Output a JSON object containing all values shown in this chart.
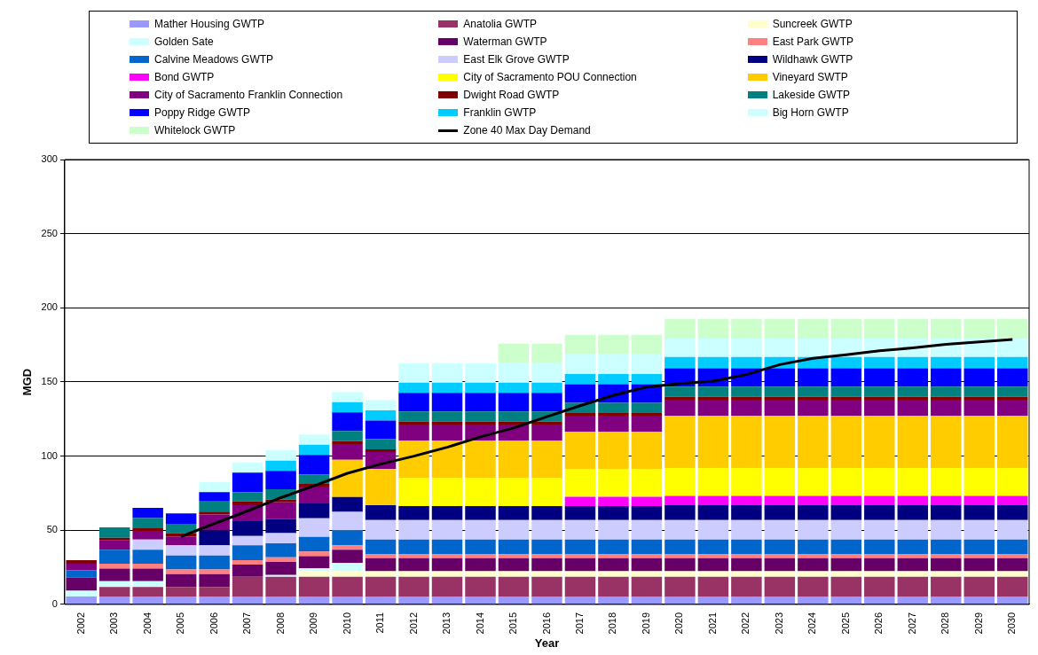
{
  "chart_data": {
    "type": "bar",
    "stacked": true,
    "xlabel": "Year",
    "ylabel": "MGD",
    "ylim": [
      0,
      300
    ],
    "yticks": [
      0,
      50,
      100,
      150,
      200,
      250,
      300
    ],
    "grid": "y",
    "legend": "top",
    "categories": [
      "2002",
      "2003",
      "2004",
      "2005",
      "2006",
      "2007",
      "2008",
      "2009",
      "2010",
      "2011",
      "2012",
      "2013",
      "2014",
      "2015",
      "2016",
      "2017",
      "2018",
      "2019",
      "2020",
      "2021",
      "2022",
      "2023",
      "2024",
      "2025",
      "2026",
      "2027",
      "2028",
      "2029",
      "2030"
    ],
    "series": [
      {
        "name": "Mather Housing GWTP",
        "color": "#9999ff",
        "values": [
          5.4,
          5.4,
          5.4,
          5.4,
          5.4,
          5.4,
          5.4,
          5.4,
          5.4,
          5.4,
          5.4,
          5.4,
          5.4,
          5.4,
          5.4,
          5.4,
          5.4,
          5.4,
          5.4,
          5.4,
          5.4,
          5.4,
          5.4,
          5.4,
          5.4,
          5.4,
          5.4,
          5.4,
          5.4
        ]
      },
      {
        "name": "Anatolia GWTP",
        "color": "#993366",
        "values": [
          null,
          6.3,
          6.3,
          6.3,
          6.3,
          13.2,
          13.2,
          13.2,
          13.2,
          13.2,
          13.2,
          13.2,
          13.2,
          13.2,
          13.2,
          13.2,
          13.2,
          13.2,
          13.2,
          13.2,
          13.2,
          13.2,
          13.2,
          13.2,
          13.2,
          13.2,
          13.2,
          13.2,
          13.2
        ]
      },
      {
        "name": "Suncreek GWTP",
        "color": "#ffffcc",
        "values": [
          null,
          null,
          null,
          null,
          null,
          null,
          null,
          3.8,
          3.8,
          3.8,
          3.8,
          3.8,
          3.8,
          3.8,
          3.8,
          3.8,
          3.8,
          3.8,
          3.8,
          3.8,
          3.8,
          3.8,
          3.8,
          3.8,
          3.8,
          3.8,
          3.8,
          3.8,
          3.8
        ]
      },
      {
        "name": "Golden Sate",
        "color": "#ccffff",
        "values": [
          3.8,
          4.0,
          4.0,
          null,
          null,
          null,
          1.3,
          1.9,
          5.6,
          null,
          null,
          null,
          null,
          null,
          null,
          null,
          null,
          null,
          null,
          null,
          null,
          null,
          null,
          null,
          null,
          null,
          null,
          null,
          null
        ]
      },
      {
        "name": "Waterman GWTP",
        "color": "#660066",
        "values": [
          8.8,
          8.4,
          8.4,
          8.8,
          8.8,
          8.2,
          8.8,
          8.2,
          8.8,
          8.8,
          8.8,
          8.8,
          8.8,
          8.8,
          8.8,
          8.8,
          8.8,
          8.8,
          8.8,
          8.8,
          8.8,
          8.8,
          8.8,
          8.8,
          8.8,
          8.8,
          8.8,
          8.8,
          8.8
        ]
      },
      {
        "name": "East Park GWTP",
        "color": "#ff8080",
        "values": [
          null,
          3.3,
          3.3,
          3.1,
          3.1,
          3.1,
          3.1,
          3.1,
          3.1,
          2.5,
          2.5,
          2.5,
          2.5,
          2.5,
          2.5,
          2.5,
          2.5,
          2.5,
          2.5,
          2.5,
          2.5,
          2.5,
          2.5,
          2.5,
          2.5,
          2.5,
          2.5,
          2.5,
          2.5
        ]
      },
      {
        "name": "Calvine Meadows GWTP",
        "color": "#0066cc",
        "values": [
          5.0,
          9.4,
          9.4,
          9.4,
          9.4,
          10,
          9.4,
          10,
          10,
          10,
          10,
          10,
          10,
          10,
          10,
          10,
          10,
          10,
          10,
          10,
          10,
          10,
          10,
          10,
          10,
          10,
          10,
          10,
          10
        ]
      },
      {
        "name": "East Elk Grove GWTP",
        "color": "#ccccff",
        "values": [
          null,
          null,
          6.9,
          6.9,
          6.9,
          6.3,
          6.9,
          12.5,
          12.5,
          13.2,
          13.2,
          13.2,
          13.2,
          13.2,
          13.2,
          13.2,
          13.2,
          13.2,
          13.2,
          13.2,
          13.2,
          13.2,
          13.2,
          13.2,
          13.2,
          13.2,
          13.2,
          13.2,
          13.2
        ]
      },
      {
        "name": "Wildhawk GWTP",
        "color": "#000080",
        "values": [
          null,
          null,
          null,
          null,
          10,
          10,
          9.4,
          10,
          10,
          10,
          9.4,
          9.4,
          9.4,
          9.4,
          9.4,
          9.4,
          9.4,
          9.4,
          10,
          10,
          10,
          10,
          10,
          10,
          10,
          10,
          10,
          10,
          10
        ]
      },
      {
        "name": "Bond GWTP",
        "color": "#ff00ff",
        "values": [
          null,
          null,
          null,
          null,
          null,
          null,
          null,
          null,
          null,
          null,
          null,
          null,
          null,
          null,
          null,
          6.3,
          6.3,
          6.3,
          6.3,
          6.3,
          6.3,
          6.3,
          6.3,
          6.3,
          6.3,
          6.3,
          6.3,
          6.3,
          6.3
        ]
      },
      {
        "name": "City of Sacramento POU Connection",
        "color": "#ffff00",
        "values": [
          null,
          null,
          null,
          null,
          null,
          null,
          null,
          null,
          null,
          null,
          19.2,
          19.2,
          19.2,
          19.2,
          19.2,
          18.8,
          18.8,
          18.8,
          18.8,
          18.8,
          18.8,
          18.8,
          18.8,
          18.8,
          18.8,
          18.8,
          18.8,
          18.8,
          18.8
        ]
      },
      {
        "name": "Vineyard SWTP",
        "color": "#ffcc00",
        "values": [
          null,
          null,
          null,
          null,
          null,
          null,
          null,
          null,
          25.1,
          24.5,
          25.1,
          25.1,
          25.1,
          25.1,
          25.1,
          25.1,
          25.1,
          25.1,
          35.3,
          35.3,
          35.3,
          35.3,
          35.3,
          35.3,
          35.3,
          35.3,
          35.3,
          35.3,
          35.3
        ]
      },
      {
        "name": "City of Sacramento Franklin Connection",
        "color": "#800080",
        "values": [
          4.4,
          6.3,
          5.9,
          5.9,
          10.7,
          10.7,
          11.3,
          11.3,
          10.7,
          11.3,
          10.7,
          10.7,
          10.7,
          10.7,
          10.7,
          10.7,
          10.7,
          10.7,
          10.7,
          10.7,
          10.7,
          10.7,
          10.7,
          10.7,
          10.7,
          10.7,
          10.7,
          10.7,
          10.7
        ]
      },
      {
        "name": "Dwight Road GWTP",
        "color": "#800000",
        "values": [
          2.5,
          1.9,
          1.7,
          2.3,
          1.9,
          2.5,
          1.9,
          1.9,
          1.9,
          1.9,
          1.9,
          1.9,
          1.9,
          1.9,
          1.9,
          1.9,
          1.9,
          1.9,
          1.9,
          1.9,
          1.9,
          1.9,
          1.9,
          1.9,
          1.9,
          1.9,
          1.9,
          1.9,
          1.9
        ]
      },
      {
        "name": "Lakeside GWTP",
        "color": "#008080",
        "values": [
          null,
          6.9,
          6.9,
          6.3,
          6.9,
          6.3,
          6.9,
          6.3,
          6.9,
          6.9,
          6.9,
          6.9,
          6.9,
          6.9,
          6.9,
          6.9,
          6.9,
          6.9,
          6.9,
          6.9,
          6.9,
          6.9,
          6.9,
          6.9,
          6.9,
          6.9,
          6.9,
          6.9,
          6.9
        ]
      },
      {
        "name": "Poppy Ridge GWTP",
        "color": "#0000ff",
        "values": [
          null,
          null,
          6.9,
          6.9,
          6.3,
          13.2,
          12.5,
          13.2,
          12.5,
          12.5,
          12.5,
          12.5,
          12.5,
          12.5,
          12.5,
          12.5,
          12.5,
          12.5,
          12.5,
          12.5,
          12.5,
          12.5,
          12.5,
          12.5,
          12.5,
          12.5,
          12.5,
          12.5,
          12.5
        ]
      },
      {
        "name": "Franklin GWTP",
        "color": "#00ccff",
        "values": [
          null,
          null,
          null,
          null,
          null,
          null,
          6.9,
          6.9,
          6.9,
          6.9,
          6.9,
          6.9,
          6.9,
          6.9,
          6.9,
          6.9,
          6.9,
          6.9,
          7.5,
          7.5,
          7.5,
          7.5,
          7.5,
          7.5,
          7.5,
          7.5,
          7.5,
          7.5,
          7.5
        ]
      },
      {
        "name": "Big Horn GWTP",
        "color": "#ccffff",
        "values": [
          null,
          null,
          null,
          null,
          6.9,
          6.9,
          6.9,
          6.9,
          6.9,
          6.9,
          13.2,
          13.2,
          13.2,
          13.2,
          13.2,
          13.2,
          13.2,
          13.2,
          12.5,
          12.5,
          12.5,
          12.5,
          12.5,
          12.5,
          12.5,
          12.5,
          12.5,
          12.5,
          12.5
        ]
      },
      {
        "name": "Whitelock GWTP",
        "color": "#ccffcc",
        "values": [
          null,
          null,
          null,
          null,
          null,
          null,
          null,
          null,
          null,
          null,
          null,
          null,
          null,
          13.2,
          13.2,
          13.2,
          13.2,
          13.2,
          13.2,
          13.2,
          13.2,
          13.2,
          13.2,
          13.2,
          13.2,
          13.2,
          13.2,
          13.2,
          13.2
        ]
      },
      {
        "name": "Zone 40 Max Day Demand",
        "type": "line",
        "color": "#000000",
        "values": [
          null,
          null,
          null,
          45.8,
          54.5,
          63,
          72,
          80,
          88.4,
          94.6,
          100,
          106,
          113,
          119,
          126.6,
          134,
          141,
          146.6,
          149,
          150.6,
          155,
          161.7,
          166,
          168.4,
          171,
          173,
          175.4,
          177,
          178.6
        ]
      }
    ]
  }
}
